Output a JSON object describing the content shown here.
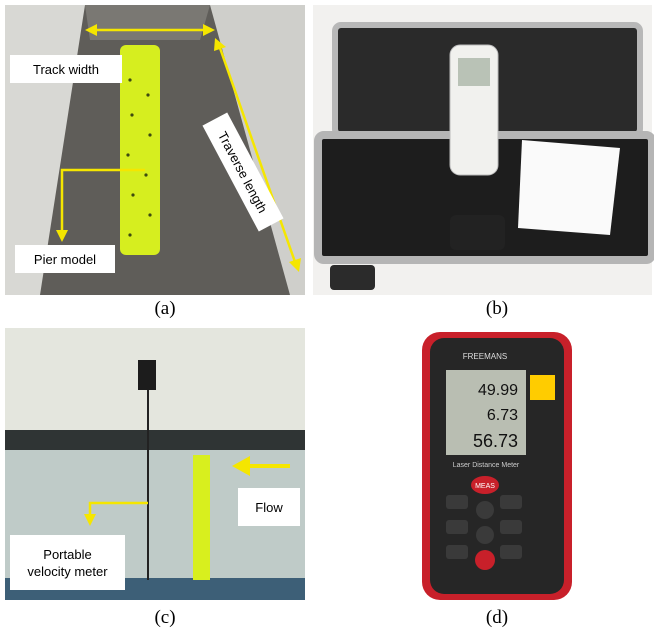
{
  "panels": [
    {
      "label": "(a)",
      "annotations": [
        "Track width",
        "Traverse length",
        "Pier model"
      ]
    },
    {
      "label": "(b)"
    },
    {
      "label": "(c)",
      "annotations": [
        "Flow",
        "Portable",
        "velocity meter"
      ]
    },
    {
      "label": "(d)",
      "device": {
        "brand": "FREEMANS",
        "readings": [
          "49.99",
          "6.73",
          "56.73"
        ],
        "button": "MEAS",
        "caption": "Laser Distance Meter"
      }
    }
  ]
}
